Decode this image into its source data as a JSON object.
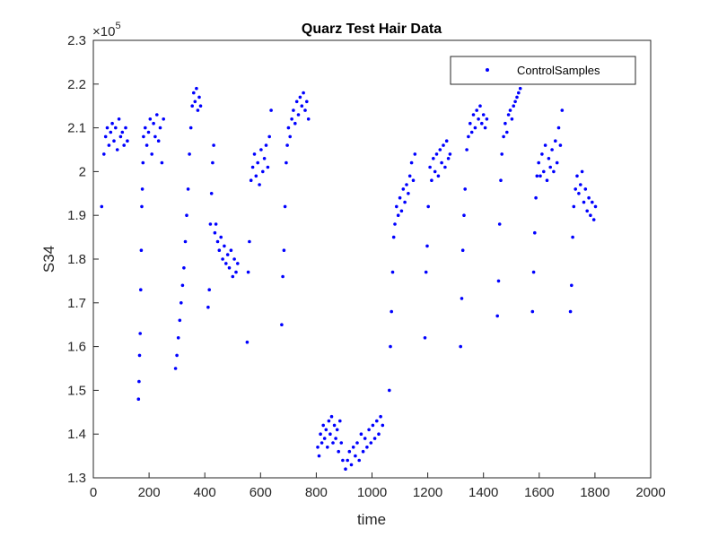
{
  "chart_data": {
    "type": "scatter",
    "title": "Quarz Test Hair Data",
    "xlabel": "time",
    "ylabel": "S34",
    "y_exponent_label": "×10",
    "y_exponent_power": "5",
    "y_multiplier": 100000,
    "xlim": [
      0,
      2000
    ],
    "ylim": [
      1.3,
      2.3
    ],
    "xticks": [
      0,
      200,
      400,
      600,
      800,
      1000,
      1200,
      1400,
      1600,
      1800,
      2000
    ],
    "yticks": [
      1.3,
      1.4,
      1.5,
      1.6,
      1.7,
      1.8,
      1.9,
      2.0,
      2.1,
      2.2,
      2.3
    ],
    "ytick_labels": [
      "1.3",
      "1.4",
      "1.5",
      "1.6",
      "1.7",
      "1.8",
      "1.9",
      "2",
      "2.1",
      "2.2",
      "2.3"
    ],
    "grid": false,
    "legend_position": "top-right",
    "marker_color": "#0000ff",
    "series": [
      {
        "name": "ControlSamples",
        "x": [
          30,
          38,
          44,
          50,
          56,
          62,
          68,
          74,
          80,
          86,
          92,
          98,
          104,
          110,
          116,
          122,
          162,
          164,
          166,
          168,
          170,
          172,
          174,
          176,
          178,
          180,
          186,
          192,
          198,
          204,
          210,
          216,
          222,
          228,
          234,
          240,
          246,
          252,
          295,
          300,
          305,
          310,
          315,
          320,
          325,
          330,
          335,
          340,
          345,
          350,
          355,
          360,
          365,
          370,
          375,
          380,
          385,
          412,
          416,
          420,
          424,
          428,
          432,
          436,
          440,
          446,
          452,
          458,
          464,
          470,
          476,
          482,
          488,
          494,
          500,
          506,
          512,
          518,
          552,
          556,
          560,
          566,
          572,
          578,
          584,
          590,
          596,
          602,
          608,
          614,
          620,
          626,
          632,
          638,
          676,
          680,
          684,
          688,
          692,
          696,
          700,
          706,
          712,
          718,
          724,
          730,
          736,
          742,
          748,
          754,
          760,
          766,
          772,
          805,
          810,
          815,
          820,
          825,
          830,
          835,
          840,
          845,
          850,
          855,
          860,
          865,
          870,
          875,
          880,
          885,
          890,
          895,
          905,
          912,
          919,
          926,
          933,
          940,
          947,
          954,
          961,
          968,
          975,
          982,
          989,
          996,
          1003,
          1010,
          1017,
          1024,
          1031,
          1038,
          1062,
          1066,
          1070,
          1074,
          1078,
          1082,
          1088,
          1094,
          1100,
          1106,
          1112,
          1118,
          1124,
          1130,
          1136,
          1142,
          1148,
          1154,
          1190,
          1194,
          1198,
          1202,
          1208,
          1214,
          1220,
          1226,
          1232,
          1238,
          1244,
          1250,
          1256,
          1262,
          1268,
          1274,
          1280,
          1318,
          1322,
          1326,
          1330,
          1334,
          1340,
          1346,
          1352,
          1358,
          1364,
          1370,
          1376,
          1382,
          1388,
          1394,
          1400,
          1406,
          1412,
          1450,
          1454,
          1458,
          1462,
          1466,
          1472,
          1478,
          1484,
          1490,
          1496,
          1502,
          1508,
          1514,
          1520,
          1526,
          1532,
          1576,
          1580,
          1584,
          1588,
          1592,
          1598,
          1604,
          1610,
          1616,
          1622,
          1628,
          1634,
          1640,
          1646,
          1652,
          1658,
          1664,
          1670,
          1676,
          1682,
          1712,
          1716,
          1720,
          1724,
          1730,
          1736,
          1742,
          1748,
          1754,
          1760,
          1766,
          1772,
          1778,
          1784,
          1790,
          1796,
          1802
        ],
        "y": [
          1.92,
          2.04,
          2.08,
          2.1,
          2.06,
          2.09,
          2.11,
          2.07,
          2.1,
          2.05,
          2.12,
          2.08,
          2.09,
          2.06,
          2.1,
          2.07,
          1.48,
          1.52,
          1.58,
          1.63,
          1.73,
          1.82,
          1.92,
          1.96,
          2.02,
          2.08,
          2.1,
          2.06,
          2.09,
          2.12,
          2.04,
          2.11,
          2.08,
          2.13,
          2.07,
          2.1,
          2.02,
          2.12,
          1.55,
          1.58,
          1.62,
          1.66,
          1.7,
          1.74,
          1.78,
          1.84,
          1.9,
          1.96,
          2.04,
          2.1,
          2.15,
          2.18,
          2.16,
          2.19,
          2.14,
          2.17,
          2.15,
          1.69,
          1.73,
          1.88,
          1.95,
          2.02,
          2.06,
          1.86,
          1.88,
          1.84,
          1.82,
          1.85,
          1.8,
          1.83,
          1.79,
          1.81,
          1.78,
          1.82,
          1.76,
          1.8,
          1.77,
          1.79,
          1.61,
          1.77,
          1.84,
          1.98,
          2.01,
          2.04,
          1.99,
          2.02,
          1.97,
          2.05,
          2.0,
          2.03,
          2.06,
          2.01,
          2.08,
          2.14,
          1.65,
          1.76,
          1.82,
          1.92,
          2.02,
          2.06,
          2.1,
          2.08,
          2.12,
          2.14,
          2.11,
          2.16,
          2.13,
          2.17,
          2.15,
          2.18,
          2.14,
          2.16,
          2.12,
          1.37,
          1.35,
          1.4,
          1.38,
          1.42,
          1.39,
          1.41,
          1.37,
          1.43,
          1.4,
          1.44,
          1.38,
          1.42,
          1.39,
          1.41,
          1.36,
          1.43,
          1.38,
          1.34,
          1.32,
          1.34,
          1.36,
          1.33,
          1.37,
          1.35,
          1.38,
          1.34,
          1.4,
          1.36,
          1.39,
          1.37,
          1.41,
          1.38,
          1.42,
          1.39,
          1.43,
          1.4,
          1.44,
          1.42,
          1.5,
          1.6,
          1.68,
          1.77,
          1.85,
          1.88,
          1.92,
          1.9,
          1.94,
          1.91,
          1.96,
          1.93,
          1.97,
          1.95,
          1.99,
          2.02,
          1.98,
          2.04,
          1.62,
          1.77,
          1.83,
          1.92,
          2.01,
          1.98,
          2.03,
          2.0,
          2.04,
          1.99,
          2.05,
          2.02,
          2.06,
          2.01,
          2.07,
          2.03,
          2.04,
          1.6,
          1.71,
          1.82,
          1.9,
          1.96,
          2.05,
          2.08,
          2.11,
          2.09,
          2.13,
          2.1,
          2.14,
          2.12,
          2.15,
          2.11,
          2.13,
          2.1,
          2.12,
          1.67,
          1.75,
          1.88,
          1.98,
          2.04,
          2.08,
          2.11,
          2.09,
          2.13,
          2.14,
          2.12,
          2.15,
          2.16,
          2.17,
          2.18,
          2.19,
          1.68,
          1.77,
          1.86,
          1.94,
          1.99,
          2.02,
          1.99,
          2.04,
          2.0,
          2.06,
          1.98,
          2.03,
          2.01,
          2.05,
          2.0,
          2.07,
          2.02,
          2.1,
          2.06,
          2.14,
          1.68,
          1.74,
          1.85,
          1.92,
          1.96,
          1.99,
          1.95,
          1.97,
          2.0,
          1.93,
          1.96,
          1.91,
          1.94,
          1.9,
          1.93,
          1.89,
          1.92
        ]
      }
    ]
  }
}
